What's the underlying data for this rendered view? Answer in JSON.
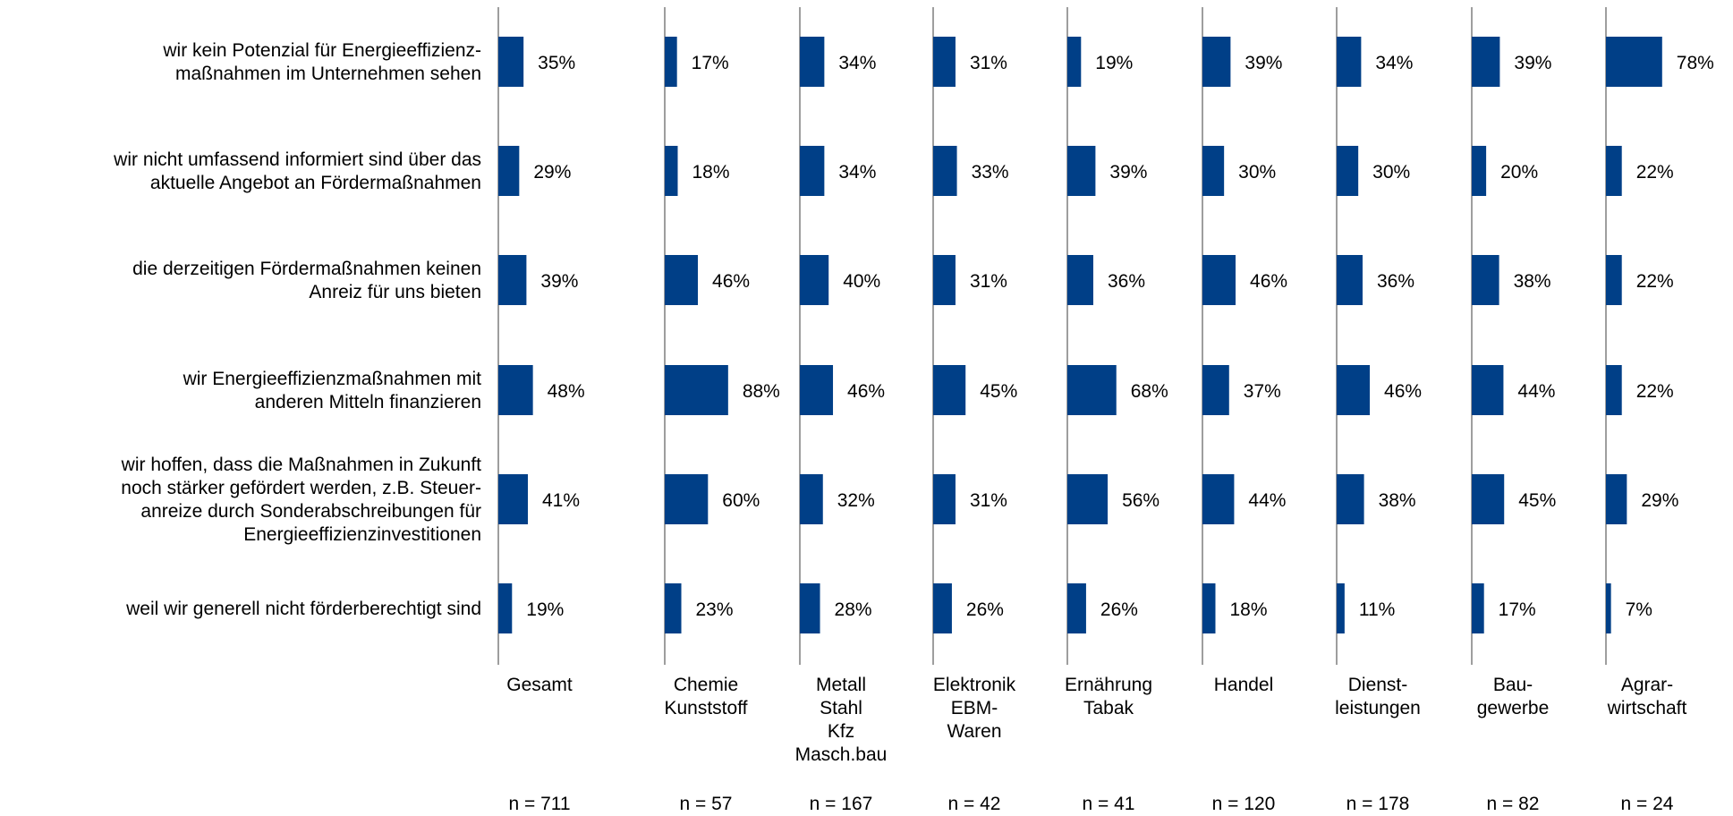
{
  "chart_data": {
    "type": "bar",
    "orientation": "horizontal",
    "bar_color": "#003F87",
    "axis_color": "#7F7F7F",
    "xlim": [
      0,
      100
    ],
    "categories": [
      [
        "wir kein Potenzial für Energieeffizienz-",
        "maßnahmen im Unternehmen sehen"
      ],
      [
        "wir nicht umfassend informiert sind über das",
        "aktuelle Angebot an Fördermaßnahmen"
      ],
      [
        "die derzeitigen Fördermaßnahmen keinen",
        "Anreiz für uns bieten"
      ],
      [
        "wir Energieeffizienzmaßnahmen mit",
        "anderen Mitteln finanzieren"
      ],
      [
        "wir hoffen, dass die Maßnahmen in Zukunft",
        "noch stärker gefördert werden, z.B. Steuer-",
        "anreize durch Sonderabschreibungen für",
        "Energieeffizienzinvestitionen"
      ],
      [
        "weil wir  generell nicht förderberechtigt sind"
      ]
    ],
    "series": [
      {
        "name": [
          "Gesamt"
        ],
        "n": "n = 711",
        "values": [
          35,
          29,
          39,
          48,
          41,
          19
        ],
        "labels": [
          "35%",
          "29%",
          "39%",
          "48%",
          "41%",
          "19%"
        ]
      },
      {
        "name": [
          "Chemie",
          "Kunststoff"
        ],
        "n": "n = 57",
        "values": [
          17,
          18,
          46,
          88,
          60,
          23
        ],
        "labels": [
          "17%",
          "18%",
          "46%",
          "88%",
          "60%",
          "23%"
        ]
      },
      {
        "name": [
          "Metall",
          "Stahl",
          "Kfz",
          "Masch.bau"
        ],
        "n": "n = 167",
        "values": [
          34,
          34,
          40,
          46,
          32,
          28
        ],
        "labels": [
          "34%",
          "34%",
          "40%",
          "46%",
          "32%",
          "28%"
        ]
      },
      {
        "name": [
          "Elektronik",
          "EBM-",
          "Waren"
        ],
        "n": "n = 42",
        "values": [
          31,
          33,
          31,
          45,
          31,
          26
        ],
        "labels": [
          "31%",
          "33%",
          "31%",
          "45%",
          "31%",
          "26%"
        ]
      },
      {
        "name": [
          "Ernährung",
          "Tabak"
        ],
        "n": "n = 41",
        "values": [
          19,
          39,
          36,
          68,
          56,
          26
        ],
        "labels": [
          "19%",
          "39%",
          "36%",
          "68%",
          "56%",
          "26%"
        ]
      },
      {
        "name": [
          "Handel"
        ],
        "n": "n = 120",
        "values": [
          39,
          30,
          46,
          37,
          44,
          18
        ],
        "labels": [
          "39%",
          "30%",
          "46%",
          "37%",
          "44%",
          "18%"
        ]
      },
      {
        "name": [
          "Dienst-",
          "leistungen"
        ],
        "n": "n = 178",
        "values": [
          34,
          30,
          36,
          46,
          38,
          11
        ],
        "labels": [
          "34%",
          "30%",
          "36%",
          "46%",
          "38%",
          "11%"
        ]
      },
      {
        "name": [
          "Bau-",
          "gewerbe"
        ],
        "n": "n = 82",
        "values": [
          39,
          20,
          38,
          44,
          45,
          17
        ],
        "labels": [
          "39%",
          "20%",
          "38%",
          "44%",
          "45%",
          "17%"
        ]
      },
      {
        "name": [
          "Agrar-",
          "wirtschaft"
        ],
        "n": "n = 24",
        "values": [
          78,
          22,
          22,
          22,
          29,
          7
        ],
        "labels": [
          "78%",
          "22%",
          "22%",
          "22%",
          "29%",
          "7%"
        ]
      }
    ]
  }
}
